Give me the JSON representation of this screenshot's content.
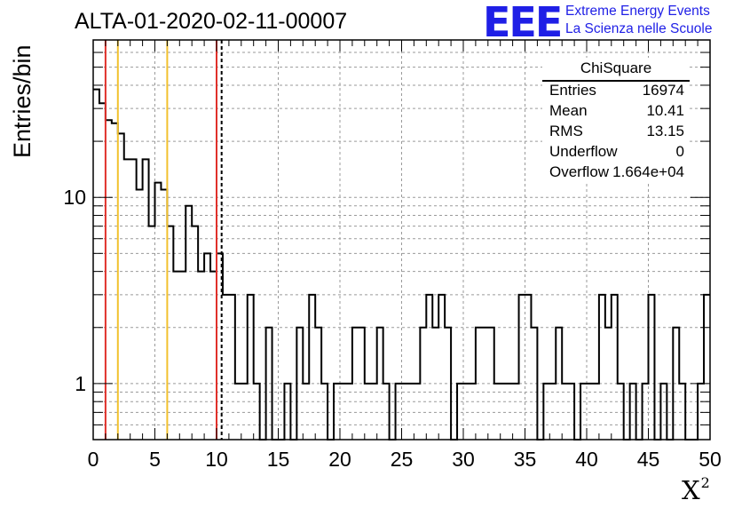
{
  "title": "ALTA-01-2020-02-11-00007",
  "brand": {
    "logo_text": "EEE",
    "line1": "Extreme Energy Events",
    "line2": "La Scienza nelle Scuole",
    "color": "#1f1fe6"
  },
  "stats_box": {
    "title": "ChiSquare",
    "rows": [
      {
        "key": "Entries",
        "value": "16974"
      },
      {
        "key": "Mean",
        "value": "10.41"
      },
      {
        "key": "RMS",
        "value": "13.15"
      },
      {
        "key": "Underflow",
        "value": "0"
      },
      {
        "key": "Overflow",
        "value": "1.664e+04"
      }
    ]
  },
  "chart_data": {
    "type": "histogram",
    "title": "ALTA-01-2020-02-11-00007",
    "xlabel": "X",
    "xlabel_superscript": "2",
    "ylabel": "Entries/bin",
    "xlim": [
      0,
      50
    ],
    "ylim": [
      0.5,
      70
    ],
    "yscale": "log",
    "grid": true,
    "bin_width": 0.5,
    "x_ticks": [
      "0",
      "5",
      "10",
      "15",
      "20",
      "25",
      "30",
      "35",
      "40",
      "45",
      "50"
    ],
    "y_ticks": [
      "1",
      "10"
    ],
    "bin_contents": [
      38,
      32,
      26,
      25,
      22,
      16,
      16,
      11,
      16,
      7,
      12,
      11,
      7,
      4,
      4,
      9,
      7,
      4,
      5,
      4,
      5,
      3,
      3,
      1,
      1,
      3,
      1,
      0,
      2,
      0,
      0,
      1,
      0,
      2,
      1,
      3,
      2,
      1,
      0,
      1,
      1,
      1,
      2,
      2,
      1,
      1,
      2,
      1,
      0,
      1,
      1,
      1,
      1,
      2,
      3,
      2,
      3,
      2,
      0,
      1,
      1,
      1,
      2,
      2,
      2,
      1,
      1,
      1,
      1,
      3,
      3,
      2,
      0,
      1,
      1,
      2,
      1,
      1,
      0,
      1,
      1,
      1,
      3,
      2,
      3,
      1,
      0,
      1,
      0,
      1,
      3,
      0,
      1,
      0,
      2,
      1,
      0,
      0,
      1,
      3
    ],
    "vertical_lines": [
      {
        "x": 1,
        "color": "#e0302a",
        "style": "solid"
      },
      {
        "x": 2,
        "color": "#f2c12e",
        "style": "solid"
      },
      {
        "x": 6,
        "color": "#f2c12e",
        "style": "solid"
      },
      {
        "x": 10,
        "color": "#e0302a",
        "style": "solid"
      },
      {
        "x": 10.41,
        "color": "#000000",
        "style": "dashed"
      }
    ]
  }
}
